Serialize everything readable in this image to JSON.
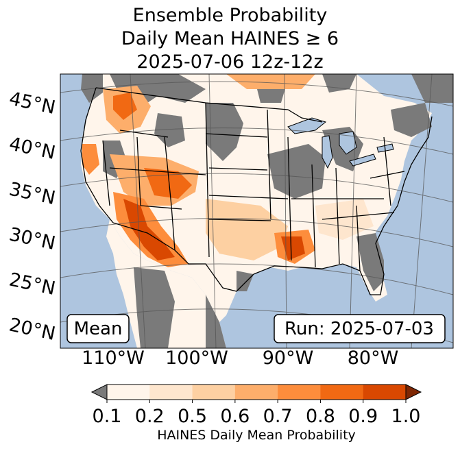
{
  "title": {
    "line1": "Ensemble Probability",
    "line2": "Daily Mean HAINES ≥ 6",
    "line3": "2025-07-06 12z-12z"
  },
  "map": {
    "lat_labels": [
      "45°N",
      "40°N",
      "35°N",
      "30°N",
      "25°N",
      "20°N"
    ],
    "lon_labels": [
      "110°W",
      "100°W",
      "90°W",
      "80°W"
    ],
    "mean_box": "Mean",
    "run_box": "Run: 2025-07-03",
    "colors": {
      "ocean": "#aec5df",
      "no_data_gray": "#7a7a7a",
      "land_low": "#fff5eb"
    }
  },
  "colorbar": {
    "ticks": [
      "0.1",
      "0.2",
      "0.5",
      "0.6",
      "0.7",
      "0.8",
      "0.9",
      "1.0"
    ],
    "title": "HAINES Daily Mean Probability",
    "under_color": "#7a7a7a",
    "over_color": "#7f2704",
    "colors": [
      "#fff5eb",
      "#fee6ce",
      "#fdd0a2",
      "#fdae6b",
      "#fd8d3c",
      "#f16913",
      "#d94801"
    ]
  }
}
